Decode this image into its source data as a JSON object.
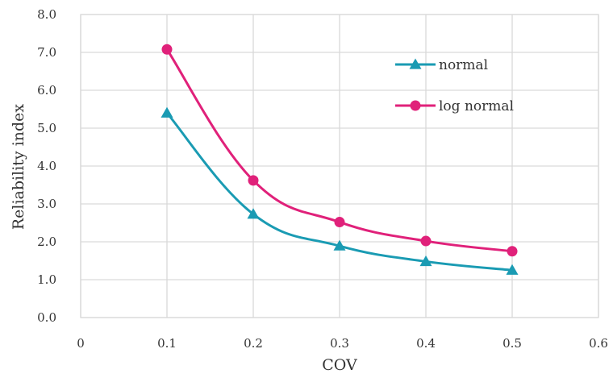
{
  "chart_data": {
    "type": "line",
    "xlabel": "COV",
    "ylabel": "Reliability index",
    "xlim": [
      0,
      0.6
    ],
    "ylim": [
      0,
      8
    ],
    "x_ticks": [
      "0",
      "0.1",
      "0.2",
      "0.3",
      "0.4",
      "0.5",
      "0.6"
    ],
    "y_ticks": [
      "0.0",
      "1.0",
      "2.0",
      "3.0",
      "4.0",
      "5.0",
      "6.0",
      "7.0",
      "8.0"
    ],
    "grid": true,
    "legend_position": "top-right",
    "series": [
      {
        "name": "normal",
        "color": "#1a9bb3",
        "marker": "triangle",
        "x": [
          0.1,
          0.2,
          0.3,
          0.4,
          0.5
        ],
        "values": [
          5.4,
          2.73,
          1.89,
          1.48,
          1.25
        ]
      },
      {
        "name": "log normal",
        "color": "#e0217a",
        "marker": "circle",
        "x": [
          0.1,
          0.2,
          0.3,
          0.4,
          0.5
        ],
        "values": [
          7.08,
          3.62,
          2.52,
          2.02,
          1.75
        ]
      }
    ]
  }
}
